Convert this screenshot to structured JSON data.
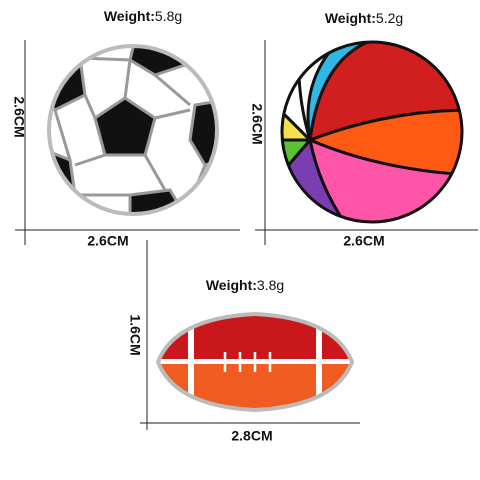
{
  "items": [
    {
      "weight_label": "Weight:",
      "weight": "5.8g",
      "height": "2.6CM",
      "width": "2.6CM"
    },
    {
      "weight_label": "Weight:",
      "weight": "5.2g",
      "height": "2.6CM",
      "width": "2.6CM"
    },
    {
      "weight_label": "Weight:",
      "weight": "3.8g",
      "height": "1.6CM",
      "width": "2.8CM"
    }
  ]
}
